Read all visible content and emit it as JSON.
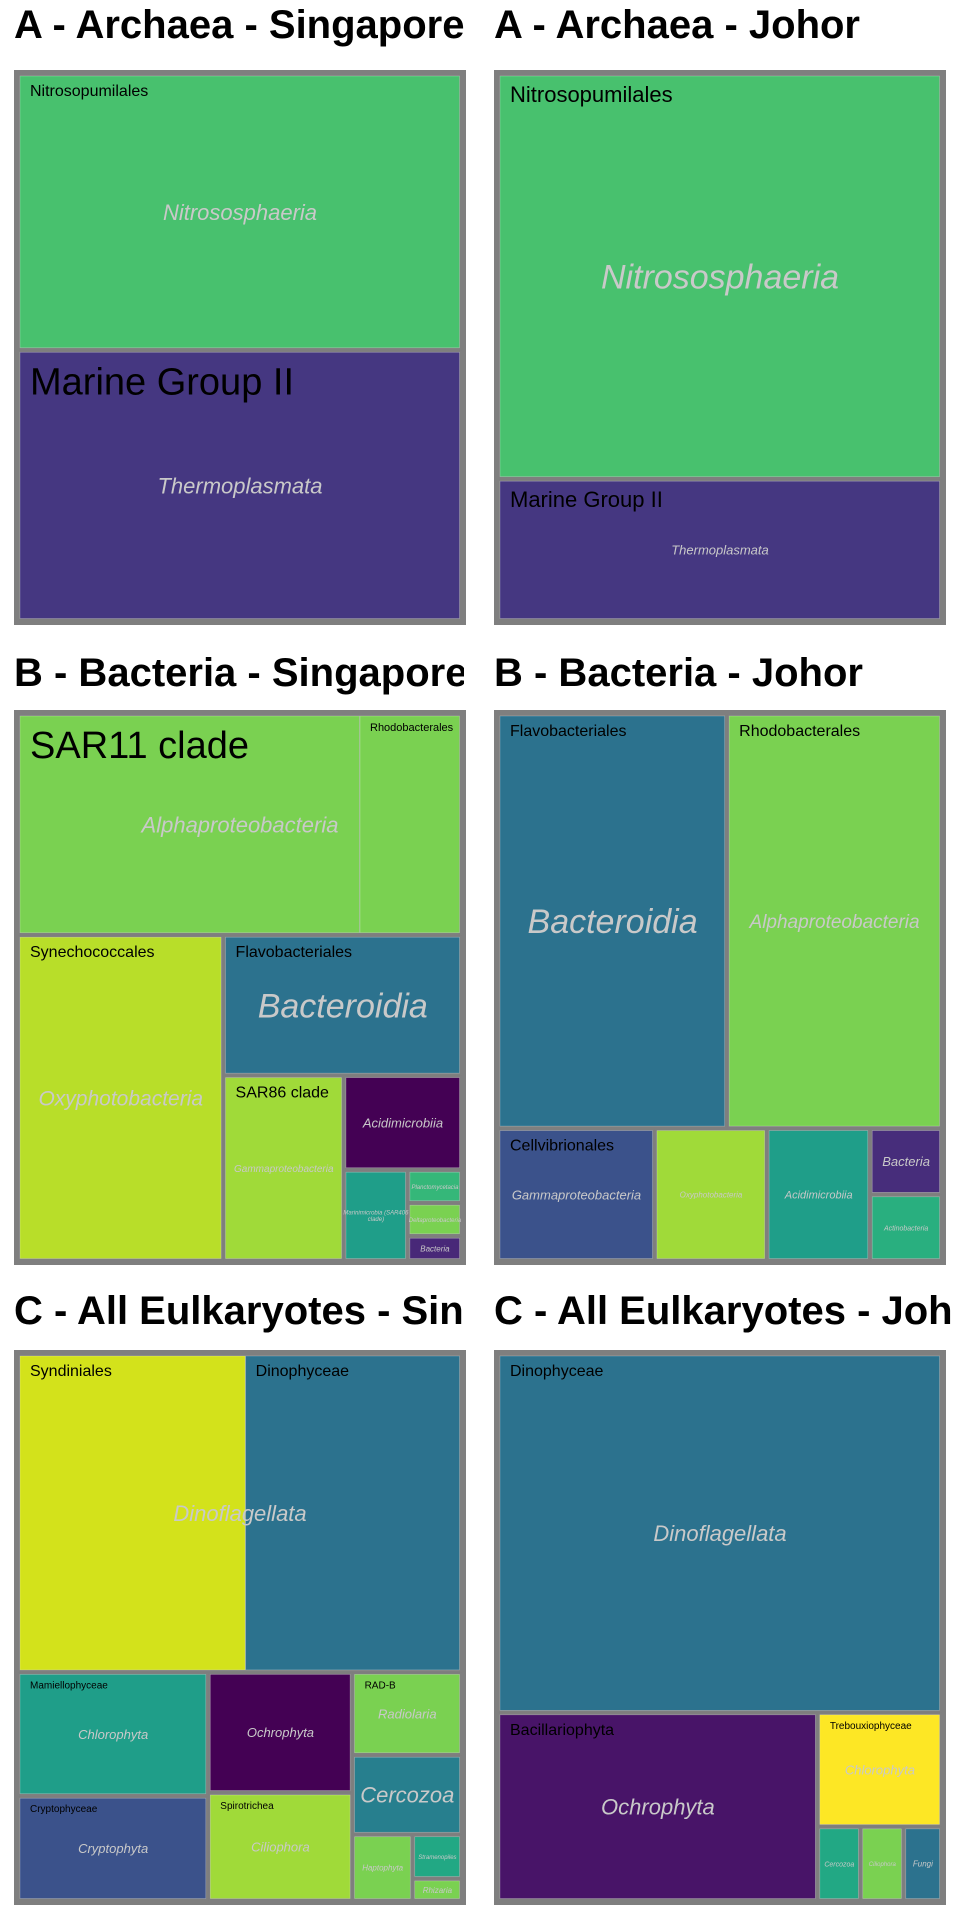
{
  "chart_data": [
    {
      "type": "treemap",
      "title": "A - Archaea - Singapore",
      "groups": [
        {
          "name": "Thermoplasmata",
          "color": "#453781",
          "label_size": "medium",
          "children": [
            {
              "name": "Marine Group II",
              "value": 98,
              "color": "#453781",
              "label_size": "large"
            }
          ]
        },
        {
          "name": "Nitrososphaeria",
          "color": "#48c16e",
          "label_size": "medium",
          "children": [
            {
              "name": "Nitrosopumilales",
              "value": 100,
              "color": "#48c16e",
              "label_size": "small"
            }
          ]
        }
      ]
    },
    {
      "type": "treemap",
      "title": "A - Archaea - Johor",
      "groups": [
        {
          "name": "Nitrososphaeria",
          "color": "#48c16e",
          "label_size": "large",
          "children": [
            {
              "name": "Nitrosopumilales",
              "value": 100,
              "color": "#48c16e",
              "label_size": "medium"
            }
          ]
        },
        {
          "name": "Thermoplasmata",
          "color": "#453781",
          "label_size": "small",
          "children": [
            {
              "name": "Marine Group II",
              "value": 35,
              "color": "#453781",
              "label_size": "medium"
            }
          ]
        }
      ]
    },
    {
      "type": "treemap",
      "title": "B - Bacteria - Singapore",
      "groups": [
        {
          "name": "Oxyphotobacteria",
          "color": "#b8de29",
          "label_size": "medium",
          "children": [
            {
              "name": "Synechococcales",
              "value": 15,
              "color": "#b8de29",
              "label_size": "small"
            }
          ]
        },
        {
          "name": "Alphaproteobacteria",
          "color": "#7ad151",
          "label_size": "medium",
          "children": [
            {
              "name": "SAR11 clade",
              "value": 17,
              "color": "#7ad151",
              "label_size": "large"
            },
            {
              "name": "Rhodobacterales",
              "value": 5,
              "color": "#7ad151",
              "label_size": "small"
            }
          ]
        },
        {
          "name": "Acidimicrobiia",
          "color": "#440154",
          "label_size": "small",
          "children": [
            {
              "name": "",
              "value": 2.5,
              "color": "#440154",
              "label_size": "small"
            }
          ]
        },
        {
          "name": "Planctomycetacia",
          "color": "#35b779",
          "label_size": "tiny",
          "children": [
            {
              "name": "",
              "value": 0.4,
              "color": "#35b779",
              "label_size": "tiny"
            }
          ]
        },
        {
          "name": "Deltaproteobacteria",
          "color": "#7ad151",
          "label_size": "tiny",
          "children": [
            {
              "name": "",
              "value": 0.4,
              "color": "#7ad151",
              "label_size": "tiny"
            }
          ]
        },
        {
          "name": "Bacteria",
          "color": "#482878",
          "label_size": "tiny",
          "children": [
            {
              "name": "",
              "value": 0.3,
              "color": "#482878",
              "label_size": "tiny"
            }
          ]
        },
        {
          "name": "Marinimicrobia (SAR406 clade)",
          "color": "#1f9e89",
          "label_size": "tiny",
          "children": [
            {
              "name": "",
              "value": 1.3,
              "color": "#1f9e89",
              "label_size": "tiny"
            }
          ]
        },
        {
          "name": "Bacteroidia",
          "color": "#2c728e",
          "label_size": "large",
          "children": [
            {
              "name": "Flavobacteriales",
              "value": 7.5,
              "color": "#2c728e",
              "label_size": "small"
            }
          ]
        },
        {
          "name": "Gammaproteobacteria",
          "color": "#a0da39",
          "label_size": "medium",
          "children": [
            {
              "name": "SAR86 clade",
              "value": 5,
              "color": "#a0da39",
              "label_size": "small"
            }
          ]
        }
      ]
    },
    {
      "type": "treemap",
      "title": "B - Bacteria - Johor",
      "groups": [
        {
          "name": "Alphaproteobacteria",
          "color": "#7ad151",
          "label_size": "medium",
          "children": [
            {
              "name": "Rhodobacterales",
              "value": 15,
              "color": "#7ad151",
              "label_size": "small"
            }
          ]
        },
        {
          "name": "Bacteroidia",
          "color": "#2c728e",
          "label_size": "large",
          "children": [
            {
              "name": "Flavobacteriales",
              "value": 16,
              "color": "#2c728e",
              "label_size": "small"
            }
          ]
        },
        {
          "name": "Acidimicrobiia",
          "color": "#1f9e89",
          "label_size": "small",
          "children": [
            {
              "name": "",
              "value": 2.3,
              "color": "#1f9e89",
              "label_size": "small"
            }
          ]
        },
        {
          "name": "Oxyphotobacteria",
          "color": "#a0da39",
          "label_size": "tiny",
          "children": [
            {
              "name": "",
              "value": 2.5,
              "color": "#a0da39",
              "label_size": "tiny"
            }
          ]
        },
        {
          "name": "Bacteria",
          "color": "#472d7b",
          "label_size": "small",
          "children": [
            {
              "name": "",
              "value": 0.8,
              "color": "#472d7b",
              "label_size": "small"
            }
          ]
        },
        {
          "name": "Actinobacteria",
          "color": "#29af7f",
          "label_size": "small",
          "children": [
            {
              "name": "",
              "value": 0.8,
              "color": "#29af7f",
              "label_size": "small"
            }
          ]
        },
        {
          "name": "Gammaproteobacteria",
          "color": "#46337e",
          "label_size": "small",
          "children": [
            {
              "name": "Cellvibrionales",
              "value": 3.5,
              "color": "#3b528b",
              "label_size": "small"
            }
          ]
        }
      ]
    },
    {
      "type": "treemap",
      "title": "C - All Eulkaryotes - Singapore",
      "groups": [
        {
          "name": "Dinoflagellata",
          "color": "#2c728e",
          "label_size": "medium",
          "children": [
            {
              "name": "Dinophyceae",
              "value": 19,
              "color": "#2c728e",
              "label_size": "small"
            },
            {
              "name": "Syndiniales",
              "value": 20,
              "color": "#d3e21b",
              "label_size": "small"
            }
          ]
        },
        {
          "name": "Radiolaria",
          "color": "#7ad151",
          "label_size": "small",
          "children": [
            {
              "name": "RAD-B",
              "value": 2.5,
              "color": "#7ad151",
              "label_size": "tiny"
            }
          ]
        },
        {
          "name": "Haptophyta",
          "color": "#7ad151",
          "label_size": "tiny",
          "children": [
            {
              "name": "",
              "value": 1.1,
              "color": "#7ad151",
              "label_size": "tiny"
            }
          ]
        },
        {
          "name": "Rhizaria",
          "color": "#7ad151",
          "label_size": "tiny",
          "children": [
            {
              "name": "",
              "value": 0.3,
              "color": "#7ad151",
              "label_size": "tiny"
            }
          ]
        },
        {
          "name": "Stramenopiles",
          "color": "#22a884",
          "label_size": "tiny",
          "children": [
            {
              "name": "",
              "value": 0.6,
              "color": "#22a884",
              "label_size": "tiny"
            }
          ]
        },
        {
          "name": "Cercozoa",
          "color": "#277f8e",
          "label_size": "medium",
          "children": [
            {
              "name": "",
              "value": 2.4,
              "color": "#277f8e",
              "label_size": "medium"
            }
          ]
        },
        {
          "name": "Cryptophyta",
          "color": "#3b528b",
          "label_size": "small",
          "children": [
            {
              "name": "Cryptophyceae",
              "value": 5.5,
              "color": "#3b528b",
              "label_size": "tiny"
            }
          ]
        },
        {
          "name": "Ciliophora",
          "color": "#a0da39",
          "label_size": "small",
          "children": [
            {
              "name": "Spirotrichea",
              "value": 4.3,
              "color": "#a0da39",
              "label_size": "tiny"
            }
          ]
        },
        {
          "name": "Chlorophyta",
          "color": "#1f9e89",
          "label_size": "small",
          "children": [
            {
              "name": "Mamiellophyceae",
              "value": 6.5,
              "color": "#1f9e89",
              "label_size": "tiny"
            }
          ]
        },
        {
          "name": "Ochrophyta",
          "color": "#440154",
          "label_size": "small",
          "children": [
            {
              "name": "",
              "value": 4.8,
              "color": "#440154",
              "label_size": "small"
            }
          ]
        }
      ]
    },
    {
      "type": "treemap",
      "title": "C - All Eulkaryotes - Johor",
      "groups": [
        {
          "name": "Dinoflagellata",
          "color": "#2c728e",
          "label_size": "medium",
          "children": [
            {
              "name": "Dinophyceae",
              "value": 45,
              "color": "#2c728e",
              "label_size": "small"
            }
          ]
        },
        {
          "name": "Chlorophyta",
          "color": "#fde725",
          "label_size": "small",
          "children": [
            {
              "name": "Trebouxiophyceae",
              "value": 4,
              "color": "#fde725",
              "label_size": "tiny"
            }
          ]
        },
        {
          "name": "Fungi",
          "color": "#2c728e",
          "label_size": "tiny",
          "children": [
            {
              "name": "",
              "value": 0.8,
              "color": "#2c728e",
              "label_size": "tiny"
            }
          ]
        },
        {
          "name": "Cercozoa",
          "color": "#22a884",
          "label_size": "tiny",
          "children": [
            {
              "name": "",
              "value": 0.9,
              "color": "#22a884",
              "label_size": "tiny"
            }
          ]
        },
        {
          "name": "Ciliophora",
          "color": "#7ad151",
          "label_size": "small",
          "children": [
            {
              "name": "",
              "value": 0.9,
              "color": "#7ad151",
              "label_size": "small"
            }
          ]
        },
        {
          "name": "Ochrophyta",
          "color": "#440154",
          "label_size": "medium",
          "children": [
            {
              "name": "Bacillariophyta",
              "value": 17,
              "color": "#481468",
              "label_size": "small"
            }
          ]
        }
      ]
    }
  ]
}
